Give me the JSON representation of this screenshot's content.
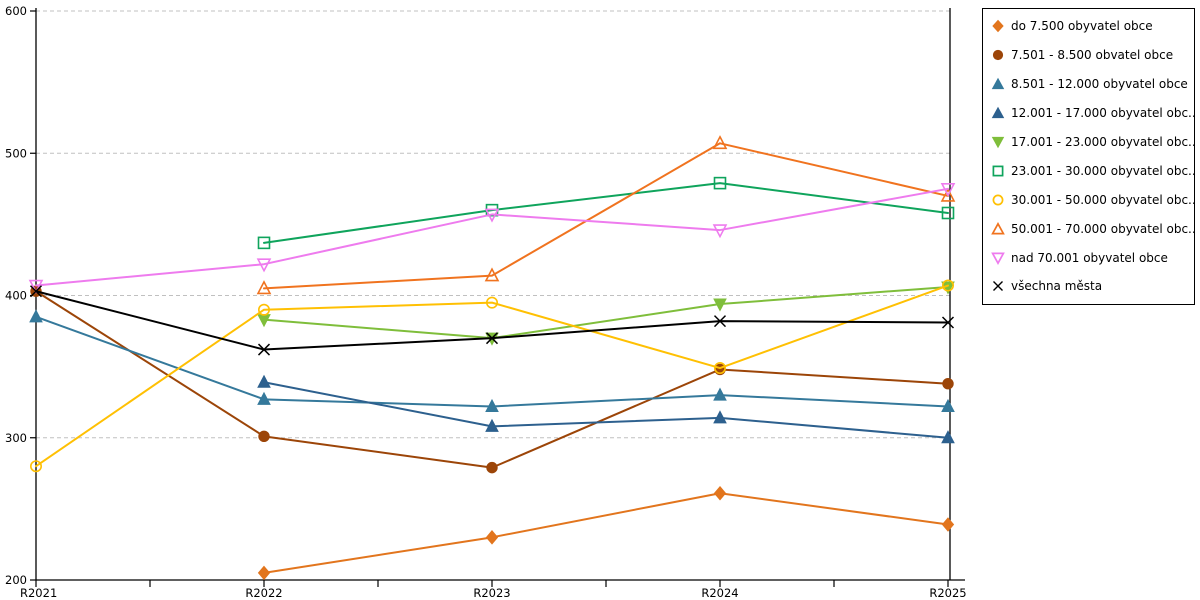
{
  "chart_data": {
    "type": "line",
    "title": "",
    "xlabel": "",
    "ylabel": "",
    "x_categories": [
      "R2021",
      "R2022",
      "R2023",
      "R2024",
      "R2025"
    ],
    "y_ticks": [
      200,
      300,
      400,
      500,
      600
    ],
    "ylim": [
      200,
      600
    ],
    "grid": "horizontal-dashed",
    "grid_color": "#c0c0c0",
    "axis_color": "#000000",
    "legend_position": "right-outside",
    "series": [
      {
        "label": "do 7.500 obyvatel obce",
        "marker": "diamond",
        "fill": "filled",
        "color": "#E2751D",
        "values": [
          null,
          205,
          230,
          261,
          239
        ]
      },
      {
        "label": "7.501 - 8.500 obvatel obce",
        "marker": "circle",
        "fill": "filled",
        "color": "#9C4508",
        "values": [
          403,
          301,
          279,
          348,
          338
        ]
      },
      {
        "label": "8.501 - 12.000 obyvatel obce",
        "marker": "triangle-up",
        "fill": "filled",
        "color": "#35799B",
        "values": [
          385,
          327,
          322,
          330,
          322
        ]
      },
      {
        "label": "12.001 - 17.000 obyvatel obc...",
        "marker": "triangle-up",
        "fill": "filled",
        "color": "#2D608E",
        "values": [
          null,
          339,
          308,
          314,
          300
        ]
      },
      {
        "label": "17.001 - 23.000 obyvatel obc...",
        "marker": "triangle-down",
        "fill": "filled",
        "color": "#7FBE3B",
        "values": [
          null,
          383,
          370,
          394,
          406
        ]
      },
      {
        "label": "23.001 - 30.000 obyvatel obc...",
        "marker": "square",
        "fill": "hollow",
        "color": "#0FA45C",
        "values": [
          null,
          437,
          460,
          479,
          458
        ]
      },
      {
        "label": "30.001 - 50.000 obyvatel obc...",
        "marker": "circle",
        "fill": "hollow",
        "color": "#FFC003",
        "values": [
          280,
          390,
          395,
          349,
          407
        ]
      },
      {
        "label": "50.001 - 70.000 obyvatel obc...",
        "marker": "triangle-up",
        "fill": "hollow",
        "color": "#F0731F",
        "values": [
          null,
          405,
          414,
          507,
          470
        ]
      },
      {
        "label": "nad 70.001 obyvatel obce",
        "marker": "triangle-down",
        "fill": "hollow",
        "color": "#EE7BEE",
        "values": [
          407,
          422,
          457,
          446,
          475
        ]
      },
      {
        "label": "všechna města",
        "marker": "x",
        "fill": "stroke",
        "color": "#000000",
        "values": [
          403,
          362,
          370,
          382,
          381
        ]
      }
    ]
  }
}
